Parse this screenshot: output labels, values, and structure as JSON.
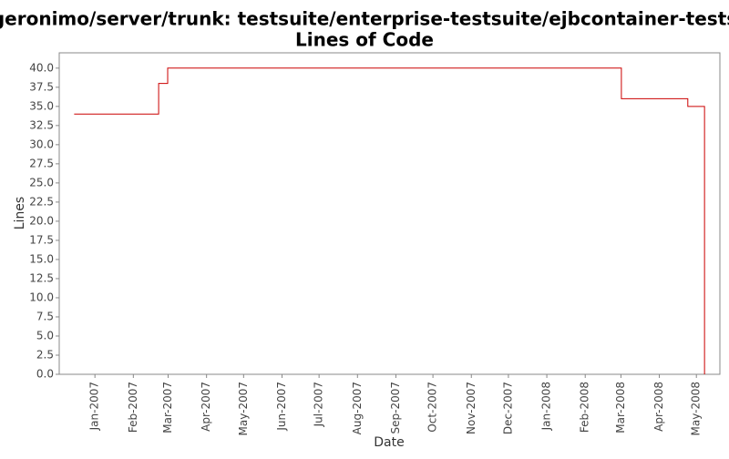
{
  "chart_data": {
    "type": "line",
    "step": "post",
    "title": [
      "/geronimo/server/trunk: testsuite/enterprise-testsuite/ejbcontainer-tests/",
      "Lines of Code"
    ],
    "x_label": "Date",
    "y_label": "Lines",
    "series": [
      {
        "name": "Lines",
        "color": "#cc0000",
        "x": [
          2006.954,
          2007.141,
          2007.161,
          2008.165,
          2008.312,
          2008.349
        ],
        "values": [
          34,
          38,
          40,
          36,
          35,
          0
        ]
      }
    ],
    "xlim": [
      2006.921,
      2008.383
    ],
    "xticks": [
      {
        "value": 2007.0,
        "label": "Jan-2007"
      },
      {
        "value": 2007.085,
        "label": "Feb-2007"
      },
      {
        "value": 2007.162,
        "label": "Mar-2007"
      },
      {
        "value": 2007.247,
        "label": "Apr-2007"
      },
      {
        "value": 2007.329,
        "label": "May-2007"
      },
      {
        "value": 2007.414,
        "label": "Jun-2007"
      },
      {
        "value": 2007.496,
        "label": "Jul-2007"
      },
      {
        "value": 2007.581,
        "label": "Aug-2007"
      },
      {
        "value": 2007.666,
        "label": "Sep-2007"
      },
      {
        "value": 2007.748,
        "label": "Oct-2007"
      },
      {
        "value": 2007.833,
        "label": "Nov-2007"
      },
      {
        "value": 2007.915,
        "label": "Dec-2007"
      },
      {
        "value": 2008.0,
        "label": "Jan-2008"
      },
      {
        "value": 2008.085,
        "label": "Feb-2008"
      },
      {
        "value": 2008.164,
        "label": "Mar-2008"
      },
      {
        "value": 2008.249,
        "label": "Apr-2008"
      },
      {
        "value": 2008.331,
        "label": "May-2008"
      }
    ],
    "ylim": [
      0,
      42
    ],
    "yticks": [
      {
        "value": 0,
        "label": "0.0"
      },
      {
        "value": 2.5,
        "label": "2.5"
      },
      {
        "value": 5,
        "label": "5.0"
      },
      {
        "value": 7.5,
        "label": "7.5"
      },
      {
        "value": 10,
        "label": "10.0"
      },
      {
        "value": 12.5,
        "label": "12.5"
      },
      {
        "value": 15,
        "label": "15.0"
      },
      {
        "value": 17.5,
        "label": "17.5"
      },
      {
        "value": 20,
        "label": "20.0"
      },
      {
        "value": 22.5,
        "label": "22.5"
      },
      {
        "value": 25,
        "label": "25.0"
      },
      {
        "value": 27.5,
        "label": "27.5"
      },
      {
        "value": 30,
        "label": "30.0"
      },
      {
        "value": 32.5,
        "label": "32.5"
      },
      {
        "value": 35,
        "label": "35.0"
      },
      {
        "value": 37.5,
        "label": "37.5"
      },
      {
        "value": 40,
        "label": "40.0"
      }
    ],
    "grid": false
  }
}
